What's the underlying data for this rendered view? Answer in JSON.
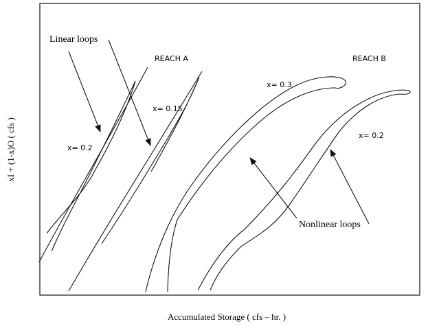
{
  "labels": {
    "linear_loops": "Linear loops",
    "reach_a": "REACH A",
    "reach_b": "REACH B",
    "x_03": "x= 0.3",
    "x_015": "x= 0.15",
    "x_02_a": "x= 0.2",
    "x_02_b": "x= 0.2",
    "nonlinear_loops": "Nonlinear loops"
  },
  "axes": {
    "x_label": "Accumulated Storage ( cfs – hr. )",
    "y_label": "xI + (1-x)O ( cfs )"
  }
}
